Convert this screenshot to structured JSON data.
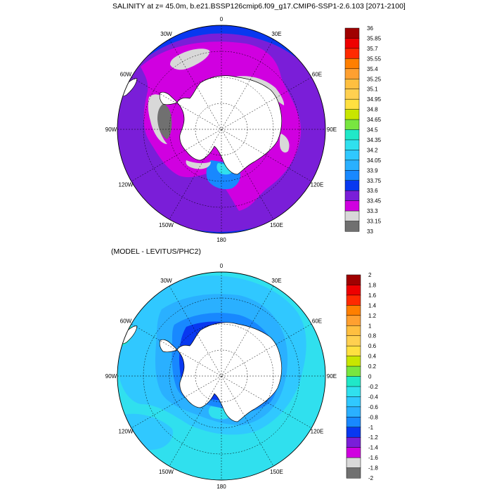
{
  "top_panel": {
    "title": "SALINITY at z=  45.0m, b.e21.BSSP126cmip6.f09_g17.CMIP6-SSP1-2.6.103 [2071-2100]",
    "colorbar_labels": [
      "36",
      "35.85",
      "35.7",
      "35.55",
      "35.4",
      "35.25",
      "35.1",
      "34.95",
      "34.8",
      "34.65",
      "34.5",
      "34.35",
      "34.2",
      "34.05",
      "33.9",
      "33.75",
      "33.6",
      "33.45",
      "33.3",
      "33.15",
      "33"
    ],
    "colorbar_colors": [
      "#a00000",
      "#ee0000",
      "#ff2a00",
      "#ff7f00",
      "#ffa030",
      "#ffbf40",
      "#ffd050",
      "#ffe040",
      "#c8e600",
      "#78e640",
      "#20e8c8",
      "#30e0ee",
      "#30c8ff",
      "#2ab0ff",
      "#1888ff",
      "#0838f0",
      "#7a1ed8",
      "#d000e0",
      "#d8d8d8",
      "#707070"
    ]
  },
  "bottom_panel": {
    "title": "(MODEL - LEVITUS/PHC2)",
    "colorbar_labels": [
      "2",
      "1.8",
      "1.6",
      "1.4",
      "1.2",
      "1",
      "0.8",
      "0.6",
      "0.4",
      "0.2",
      "0",
      "-0.2",
      "-0.4",
      "-0.6",
      "-0.8",
      "-1",
      "-1.2",
      "-1.4",
      "-1.6",
      "-1.8",
      "-2"
    ],
    "colorbar_colors": [
      "#a00000",
      "#ee0000",
      "#ff2a00",
      "#ff7f00",
      "#ffa030",
      "#ffbf40",
      "#ffd050",
      "#ffe040",
      "#c8e600",
      "#78e640",
      "#20e8c8",
      "#30e0ee",
      "#30c8ff",
      "#2ab0ff",
      "#1888ff",
      "#0838f0",
      "#7a1ed8",
      "#d000e0",
      "#d8d8d8",
      "#707070"
    ]
  },
  "longitude_labels": [
    "0",
    "30E",
    "60E",
    "90E",
    "120E",
    "150E",
    "180",
    "150W",
    "120W",
    "90W",
    "60W",
    "30W"
  ],
  "colors": {
    "land": "#ffffff",
    "coast": "#000000"
  }
}
